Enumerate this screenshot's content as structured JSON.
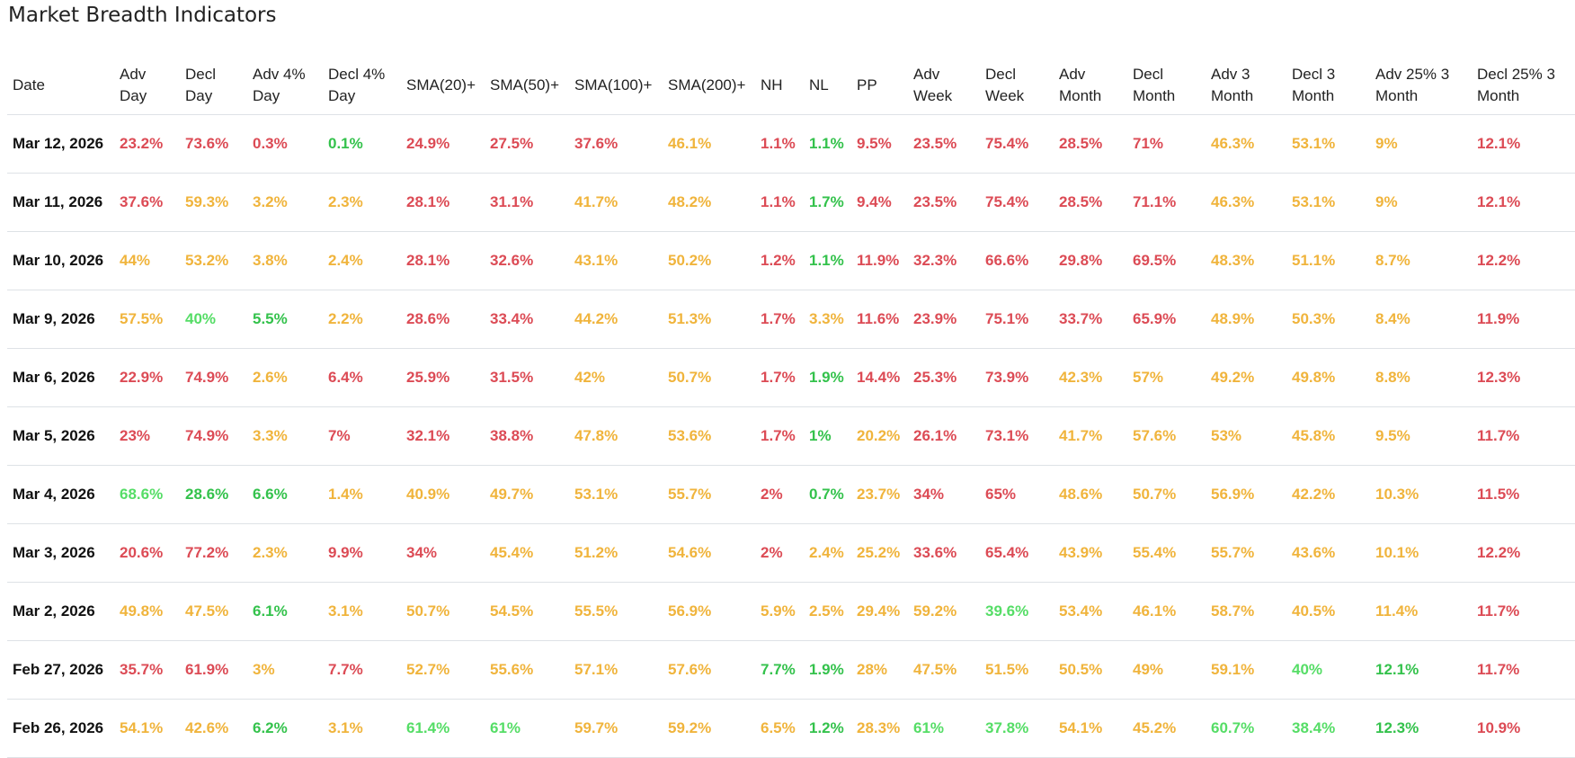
{
  "title": "Market Breadth Indicators",
  "colors": {
    "r": "#dc4b55",
    "y": "#f0b43c",
    "g": "#34c24c",
    "lg": "#55dd66"
  },
  "columns": [
    {
      "key": "date",
      "label": "Date"
    },
    {
      "key": "adv_day",
      "label": "Adv Day"
    },
    {
      "key": "decl_day",
      "label": "Decl Day"
    },
    {
      "key": "adv4_day",
      "label": "Adv 4% Day"
    },
    {
      "key": "decl4_day",
      "label": "Decl 4% Day"
    },
    {
      "key": "sma20",
      "label": "SMA(20)+"
    },
    {
      "key": "sma50",
      "label": "SMA(50)+"
    },
    {
      "key": "sma100",
      "label": "SMA(100)+"
    },
    {
      "key": "sma200",
      "label": "SMA(200)+"
    },
    {
      "key": "nh",
      "label": "NH"
    },
    {
      "key": "nl",
      "label": "NL"
    },
    {
      "key": "pp",
      "label": "PP"
    },
    {
      "key": "adv_week",
      "label": "Adv Week"
    },
    {
      "key": "decl_week",
      "label": "Decl Week"
    },
    {
      "key": "adv_month",
      "label": "Adv Month"
    },
    {
      "key": "decl_month",
      "label": "Decl Month"
    },
    {
      "key": "adv3_month",
      "label": "Adv 3 Month"
    },
    {
      "key": "decl3_month",
      "label": "Decl 3 Month"
    },
    {
      "key": "adv25_3month",
      "label": "Adv 25% 3 Month"
    },
    {
      "key": "decl25_3month",
      "label": "Decl 25% 3 Month"
    }
  ],
  "rows": [
    {
      "date": "Mar 12, 2026",
      "cells": [
        [
          "23.2%",
          "r"
        ],
        [
          "73.6%",
          "r"
        ],
        [
          "0.3%",
          "r"
        ],
        [
          "0.1%",
          "g"
        ],
        [
          "24.9%",
          "r"
        ],
        [
          "27.5%",
          "r"
        ],
        [
          "37.6%",
          "r"
        ],
        [
          "46.1%",
          "y"
        ],
        [
          "1.1%",
          "r"
        ],
        [
          "1.1%",
          "g"
        ],
        [
          "9.5%",
          "r"
        ],
        [
          "23.5%",
          "r"
        ],
        [
          "75.4%",
          "r"
        ],
        [
          "28.5%",
          "r"
        ],
        [
          "71%",
          "r"
        ],
        [
          "46.3%",
          "y"
        ],
        [
          "53.1%",
          "y"
        ],
        [
          "9%",
          "y"
        ],
        [
          "12.1%",
          "r"
        ]
      ]
    },
    {
      "date": "Mar 11, 2026",
      "cells": [
        [
          "37.6%",
          "r"
        ],
        [
          "59.3%",
          "y"
        ],
        [
          "3.2%",
          "y"
        ],
        [
          "2.3%",
          "y"
        ],
        [
          "28.1%",
          "r"
        ],
        [
          "31.1%",
          "r"
        ],
        [
          "41.7%",
          "y"
        ],
        [
          "48.2%",
          "y"
        ],
        [
          "1.1%",
          "r"
        ],
        [
          "1.7%",
          "g"
        ],
        [
          "9.4%",
          "r"
        ],
        [
          "23.5%",
          "r"
        ],
        [
          "75.4%",
          "r"
        ],
        [
          "28.5%",
          "r"
        ],
        [
          "71.1%",
          "r"
        ],
        [
          "46.3%",
          "y"
        ],
        [
          "53.1%",
          "y"
        ],
        [
          "9%",
          "y"
        ],
        [
          "12.1%",
          "r"
        ]
      ]
    },
    {
      "date": "Mar 10, 2026",
      "cells": [
        [
          "44%",
          "y"
        ],
        [
          "53.2%",
          "y"
        ],
        [
          "3.8%",
          "y"
        ],
        [
          "2.4%",
          "y"
        ],
        [
          "28.1%",
          "r"
        ],
        [
          "32.6%",
          "r"
        ],
        [
          "43.1%",
          "y"
        ],
        [
          "50.2%",
          "y"
        ],
        [
          "1.2%",
          "r"
        ],
        [
          "1.1%",
          "g"
        ],
        [
          "11.9%",
          "r"
        ],
        [
          "32.3%",
          "r"
        ],
        [
          "66.6%",
          "r"
        ],
        [
          "29.8%",
          "r"
        ],
        [
          "69.5%",
          "r"
        ],
        [
          "48.3%",
          "y"
        ],
        [
          "51.1%",
          "y"
        ],
        [
          "8.7%",
          "y"
        ],
        [
          "12.2%",
          "r"
        ]
      ]
    },
    {
      "date": "Mar 9, 2026",
      "cells": [
        [
          "57.5%",
          "y"
        ],
        [
          "40%",
          "lg"
        ],
        [
          "5.5%",
          "g"
        ],
        [
          "2.2%",
          "y"
        ],
        [
          "28.6%",
          "r"
        ],
        [
          "33.4%",
          "r"
        ],
        [
          "44.2%",
          "y"
        ],
        [
          "51.3%",
          "y"
        ],
        [
          "1.7%",
          "r"
        ],
        [
          "3.3%",
          "y"
        ],
        [
          "11.6%",
          "r"
        ],
        [
          "23.9%",
          "r"
        ],
        [
          "75.1%",
          "r"
        ],
        [
          "33.7%",
          "r"
        ],
        [
          "65.9%",
          "r"
        ],
        [
          "48.9%",
          "y"
        ],
        [
          "50.3%",
          "y"
        ],
        [
          "8.4%",
          "y"
        ],
        [
          "11.9%",
          "r"
        ]
      ]
    },
    {
      "date": "Mar 6, 2026",
      "cells": [
        [
          "22.9%",
          "r"
        ],
        [
          "74.9%",
          "r"
        ],
        [
          "2.6%",
          "y"
        ],
        [
          "6.4%",
          "r"
        ],
        [
          "25.9%",
          "r"
        ],
        [
          "31.5%",
          "r"
        ],
        [
          "42%",
          "y"
        ],
        [
          "50.7%",
          "y"
        ],
        [
          "1.7%",
          "r"
        ],
        [
          "1.9%",
          "g"
        ],
        [
          "14.4%",
          "r"
        ],
        [
          "25.3%",
          "r"
        ],
        [
          "73.9%",
          "r"
        ],
        [
          "42.3%",
          "y"
        ],
        [
          "57%",
          "y"
        ],
        [
          "49.2%",
          "y"
        ],
        [
          "49.8%",
          "y"
        ],
        [
          "8.8%",
          "y"
        ],
        [
          "12.3%",
          "r"
        ]
      ]
    },
    {
      "date": "Mar 5, 2026",
      "cells": [
        [
          "23%",
          "r"
        ],
        [
          "74.9%",
          "r"
        ],
        [
          "3.3%",
          "y"
        ],
        [
          "7%",
          "r"
        ],
        [
          "32.1%",
          "r"
        ],
        [
          "38.8%",
          "r"
        ],
        [
          "47.8%",
          "y"
        ],
        [
          "53.6%",
          "y"
        ],
        [
          "1.7%",
          "r"
        ],
        [
          "1%",
          "g"
        ],
        [
          "20.2%",
          "y"
        ],
        [
          "26.1%",
          "r"
        ],
        [
          "73.1%",
          "r"
        ],
        [
          "41.7%",
          "y"
        ],
        [
          "57.6%",
          "y"
        ],
        [
          "53%",
          "y"
        ],
        [
          "45.8%",
          "y"
        ],
        [
          "9.5%",
          "y"
        ],
        [
          "11.7%",
          "r"
        ]
      ]
    },
    {
      "date": "Mar 4, 2026",
      "cells": [
        [
          "68.6%",
          "lg"
        ],
        [
          "28.6%",
          "g"
        ],
        [
          "6.6%",
          "g"
        ],
        [
          "1.4%",
          "y"
        ],
        [
          "40.9%",
          "y"
        ],
        [
          "49.7%",
          "y"
        ],
        [
          "53.1%",
          "y"
        ],
        [
          "55.7%",
          "y"
        ],
        [
          "2%",
          "r"
        ],
        [
          "0.7%",
          "g"
        ],
        [
          "23.7%",
          "y"
        ],
        [
          "34%",
          "r"
        ],
        [
          "65%",
          "r"
        ],
        [
          "48.6%",
          "y"
        ],
        [
          "50.7%",
          "y"
        ],
        [
          "56.9%",
          "y"
        ],
        [
          "42.2%",
          "y"
        ],
        [
          "10.3%",
          "y"
        ],
        [
          "11.5%",
          "r"
        ]
      ]
    },
    {
      "date": "Mar 3, 2026",
      "cells": [
        [
          "20.6%",
          "r"
        ],
        [
          "77.2%",
          "r"
        ],
        [
          "2.3%",
          "y"
        ],
        [
          "9.9%",
          "r"
        ],
        [
          "34%",
          "r"
        ],
        [
          "45.4%",
          "y"
        ],
        [
          "51.2%",
          "y"
        ],
        [
          "54.6%",
          "y"
        ],
        [
          "2%",
          "r"
        ],
        [
          "2.4%",
          "y"
        ],
        [
          "25.2%",
          "y"
        ],
        [
          "33.6%",
          "r"
        ],
        [
          "65.4%",
          "r"
        ],
        [
          "43.9%",
          "y"
        ],
        [
          "55.4%",
          "y"
        ],
        [
          "55.7%",
          "y"
        ],
        [
          "43.6%",
          "y"
        ],
        [
          "10.1%",
          "y"
        ],
        [
          "12.2%",
          "r"
        ]
      ]
    },
    {
      "date": "Mar 2, 2026",
      "cells": [
        [
          "49.8%",
          "y"
        ],
        [
          "47.5%",
          "y"
        ],
        [
          "6.1%",
          "g"
        ],
        [
          "3.1%",
          "y"
        ],
        [
          "50.7%",
          "y"
        ],
        [
          "54.5%",
          "y"
        ],
        [
          "55.5%",
          "y"
        ],
        [
          "56.9%",
          "y"
        ],
        [
          "5.9%",
          "y"
        ],
        [
          "2.5%",
          "y"
        ],
        [
          "29.4%",
          "y"
        ],
        [
          "59.2%",
          "y"
        ],
        [
          "39.6%",
          "lg"
        ],
        [
          "53.4%",
          "y"
        ],
        [
          "46.1%",
          "y"
        ],
        [
          "58.7%",
          "y"
        ],
        [
          "40.5%",
          "y"
        ],
        [
          "11.4%",
          "y"
        ],
        [
          "11.7%",
          "r"
        ]
      ]
    },
    {
      "date": "Feb 27, 2026",
      "cells": [
        [
          "35.7%",
          "r"
        ],
        [
          "61.9%",
          "r"
        ],
        [
          "3%",
          "y"
        ],
        [
          "7.7%",
          "r"
        ],
        [
          "52.7%",
          "y"
        ],
        [
          "55.6%",
          "y"
        ],
        [
          "57.1%",
          "y"
        ],
        [
          "57.6%",
          "y"
        ],
        [
          "7.7%",
          "g"
        ],
        [
          "1.9%",
          "g"
        ],
        [
          "28%",
          "y"
        ],
        [
          "47.5%",
          "y"
        ],
        [
          "51.5%",
          "y"
        ],
        [
          "50.5%",
          "y"
        ],
        [
          "49%",
          "y"
        ],
        [
          "59.1%",
          "y"
        ],
        [
          "40%",
          "lg"
        ],
        [
          "12.1%",
          "g"
        ],
        [
          "11.7%",
          "r"
        ]
      ]
    },
    {
      "date": "Feb 26, 2026",
      "cells": [
        [
          "54.1%",
          "y"
        ],
        [
          "42.6%",
          "y"
        ],
        [
          "6.2%",
          "g"
        ],
        [
          "3.1%",
          "y"
        ],
        [
          "61.4%",
          "lg"
        ],
        [
          "61%",
          "lg"
        ],
        [
          "59.7%",
          "y"
        ],
        [
          "59.2%",
          "y"
        ],
        [
          "6.5%",
          "y"
        ],
        [
          "1.2%",
          "g"
        ],
        [
          "28.3%",
          "y"
        ],
        [
          "61%",
          "lg"
        ],
        [
          "37.8%",
          "lg"
        ],
        [
          "54.1%",
          "y"
        ],
        [
          "45.2%",
          "y"
        ],
        [
          "60.7%",
          "lg"
        ],
        [
          "38.4%",
          "lg"
        ],
        [
          "12.3%",
          "g"
        ],
        [
          "10.9%",
          "r"
        ]
      ]
    }
  ]
}
